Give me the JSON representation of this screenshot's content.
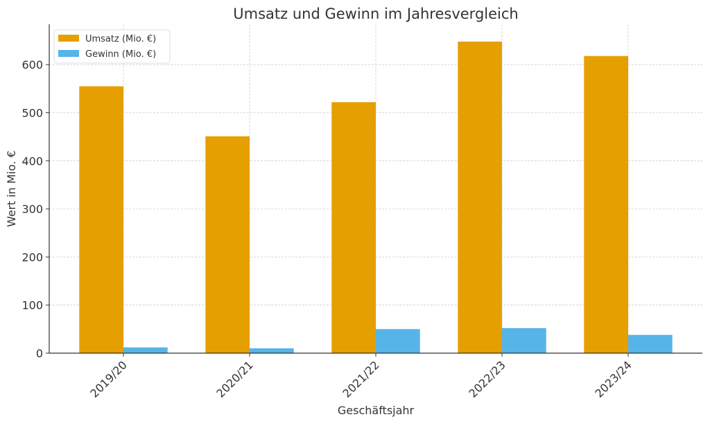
{
  "chart_data": {
    "type": "bar",
    "title": "Umsatz und Gewinn im Jahresvergleich",
    "xlabel": "Geschäftsjahr",
    "ylabel": "Wert in Mio. €",
    "categories": [
      "2019/20",
      "2020/21",
      "2021/22",
      "2022/23",
      "2023/24"
    ],
    "series": [
      {
        "name": "Umsatz (Mio. €)",
        "color": "#E69F00",
        "values": [
          555,
          451,
          522,
          648,
          618
        ]
      },
      {
        "name": "Gewinn (Mio. €)",
        "color": "#56B4E9",
        "values": [
          12,
          10,
          50,
          52,
          38
        ]
      }
    ],
    "ylim": [
      0,
      684
    ],
    "yticks": [
      0,
      100,
      200,
      300,
      400,
      500,
      600
    ],
    "grid": true,
    "legend": "top-left"
  }
}
